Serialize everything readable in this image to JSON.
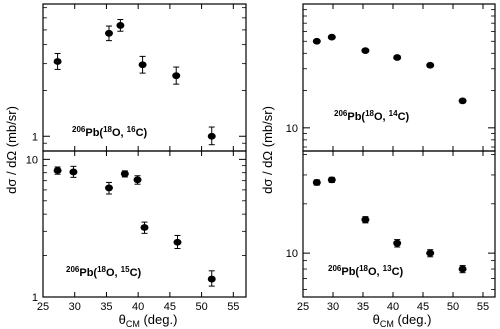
{
  "figure": {
    "left_ylabel": "dσ / dΩ (mb/sr)",
    "right_ylabel": "dσ / dΩ (mb/sr)",
    "left_xlabel": "θCM (deg.)",
    "right_xlabel": "θCM (deg.)",
    "x_ticks": [
      25,
      30,
      35,
      40,
      45,
      50,
      55
    ]
  },
  "chart_data": [
    {
      "type": "scatter",
      "title": "",
      "label": "206Pb(18O, 16C)",
      "xlabel": "",
      "ylabel": "dσ / dΩ (mb/sr)",
      "xlim": [
        25,
        57
      ],
      "ylim": [
        0.8,
        7.4
      ],
      "yscale": "log",
      "y_ticks": [
        1
      ],
      "x": [
        27.3,
        35.4,
        37.2,
        40.7,
        46.0,
        51.6
      ],
      "y": [
        3.1,
        4.75,
        5.35,
        2.95,
        2.5,
        1.0
      ],
      "yerr_lo": [
        0.35,
        0.5,
        0.45,
        0.35,
        0.3,
        0.12
      ],
      "yerr_hi": [
        0.4,
        0.55,
        0.5,
        0.4,
        0.35,
        0.15
      ]
    },
    {
      "type": "scatter",
      "title": "",
      "label": "206Pb(18O, 15C)",
      "xlabel": "θCM (deg.)",
      "ylabel": "dσ / dΩ (mb/sr)",
      "xlim": [
        25,
        57
      ],
      "ylim": [
        1,
        11.5
      ],
      "yscale": "log",
      "y_ticks": [
        1,
        10
      ],
      "x": [
        27.3,
        29.8,
        35.4,
        37.9,
        39.9,
        41.0,
        46.2,
        51.6
      ],
      "y": [
        8.3,
        8.1,
        6.2,
        7.85,
        7.1,
        3.2,
        2.5,
        1.35
      ],
      "yerr_lo": [
        0.5,
        0.7,
        0.6,
        0.4,
        0.5,
        0.3,
        0.25,
        0.15
      ],
      "yerr_hi": [
        0.5,
        0.8,
        0.6,
        0.4,
        0.5,
        0.3,
        0.3,
        0.2
      ]
    },
    {
      "type": "scatter",
      "title": "",
      "label": "206Pb(18O, 14C)",
      "xlabel": "",
      "ylabel": "dσ / dΩ (mb/sr)",
      "xlim": [
        25,
        57
      ],
      "ylim": [
        6.5,
        100
      ],
      "yscale": "log",
      "y_ticks": [
        10
      ],
      "x": [
        27.3,
        29.8,
        35.4,
        40.7,
        46.2,
        51.6
      ],
      "y": [
        50.0,
        54.0,
        42.0,
        37.0,
        32.0,
        16.5
      ],
      "yerr_lo": [
        1.5,
        1.5,
        1.2,
        1.0,
        1.0,
        0.6
      ],
      "yerr_hi": [
        1.5,
        1.5,
        1.2,
        1.0,
        1.0,
        0.6
      ]
    },
    {
      "type": "scatter",
      "title": "",
      "label": "206Pb(18O, 13C)",
      "xlabel": "θCM (deg.)",
      "ylabel": "dσ / dΩ (mb/sr)",
      "xlim": [
        25,
        57
      ],
      "ylim": [
        5.4,
        42
      ],
      "yscale": "log",
      "y_ticks": [
        10
      ],
      "x": [
        27.3,
        29.8,
        35.4,
        40.7,
        46.2,
        51.6
      ],
      "y": [
        27.0,
        28.0,
        16.0,
        11.5,
        10.0,
        8.0
      ],
      "yerr_lo": [
        1.0,
        1.0,
        0.7,
        0.6,
        0.5,
        0.4
      ],
      "yerr_hi": [
        1.0,
        1.0,
        0.7,
        0.6,
        0.5,
        0.4
      ]
    }
  ]
}
